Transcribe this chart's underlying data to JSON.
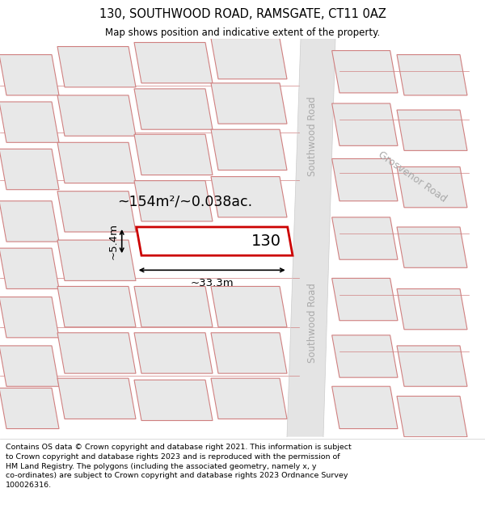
{
  "title": "130, SOUTHWOOD ROAD, RAMSGATE, CT11 0AZ",
  "subtitle": "Map shows position and indicative extent of the property.",
  "footer": "Contains OS data © Crown copyright and database right 2021. This information is subject to Crown copyright and database rights 2023 and is reproduced with the permission of HM Land Registry. The polygons (including the associated geometry, namely x, y co-ordinates) are subject to Crown copyright and database rights 2023 Ordnance Survey 100026316.",
  "area_text": "~154m²/~0.038ac.",
  "width_text": "~33.3m",
  "height_text": "~5.4m",
  "number_text": "130",
  "road_label_1": "Southwood Road",
  "road_label_2": "Grosvenor Road",
  "map_bg": "#f5f5f5",
  "building_fill": "#e8e8e8",
  "building_edge": "#d08080",
  "highlight_fill": "#ffffff",
  "highlight_edge": "#cc0000",
  "road_fill": "#e8e8e8",
  "road_text_color": "#aaaaaa",
  "dim_color": "#000000",
  "title_color": "#000000",
  "footer_color": "#000000"
}
